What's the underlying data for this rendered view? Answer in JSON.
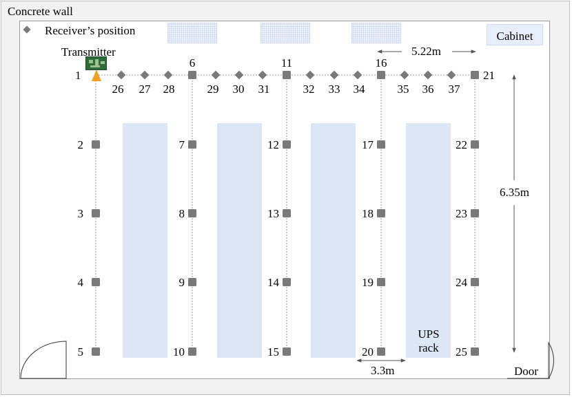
{
  "wall_label": "Concrete wall",
  "legend": {
    "label": "Receiver’s position"
  },
  "cabinet_label": "Cabinet",
  "transmitter_label": "Transmitter",
  "rack_label_line1": "UPS",
  "rack_label_line2": "rack",
  "door_label": "Door",
  "dimensions": {
    "top_spacing": "5.22m",
    "vertical_span": "6.35m",
    "aisle_width": "3.3m"
  },
  "receivers": {
    "column_1": [
      "1",
      "2",
      "3",
      "4",
      "5"
    ],
    "column_2": [
      "6",
      "7",
      "8",
      "9",
      "10"
    ],
    "column_3": [
      "11",
      "12",
      "13",
      "14",
      "15"
    ],
    "column_4": [
      "16",
      "17",
      "18",
      "19",
      "20"
    ],
    "column_5": [
      "21",
      "22",
      "23",
      "24",
      "25"
    ],
    "top_row_intermediate": [
      "26",
      "27",
      "28",
      "29",
      "30",
      "31",
      "32",
      "33",
      "34",
      "35",
      "36",
      "37"
    ]
  },
  "colors": {
    "marker": "#7a7a7a",
    "rack": "#dbe7f5",
    "transmitter_board": "#2f6a3a",
    "antenna": "#f0a020"
  },
  "icons": [
    "receiver-diamond-icon",
    "transmitter-board-icon",
    "antenna-icon",
    "door-swing-icon"
  ]
}
